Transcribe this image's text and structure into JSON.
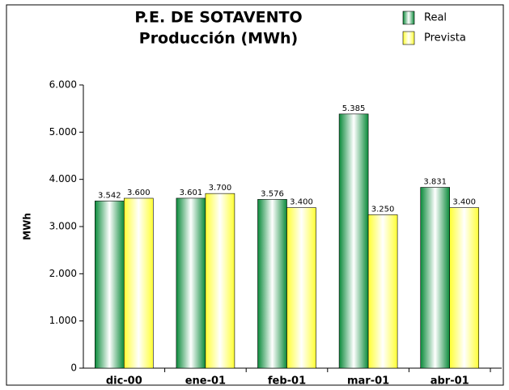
{
  "chart_data": {
    "type": "bar",
    "title": "P.E. DE SOTAVENTO",
    "subtitle": "Producción (MWh)",
    "y_label": "MWh",
    "categories": [
      "dic-00",
      "ene-01",
      "feb-01",
      "mar-01",
      "abr-01"
    ],
    "series": [
      {
        "name": "Real",
        "color": "#0a8a3a",
        "values": [
          3542,
          3601,
          3576,
          5385,
          3831
        ],
        "value_labels": [
          "3.542",
          "3.601",
          "3.576",
          "5.385",
          "3.831"
        ]
      },
      {
        "name": "Prevista",
        "color": "#ffff33",
        "values": [
          3600,
          3700,
          3400,
          3250,
          3400
        ],
        "value_labels": [
          "3.600",
          "3.700",
          "3.400",
          "3.250",
          "3.400"
        ]
      }
    ],
    "ylim": [
      0,
      6000
    ],
    "yticks": [
      0,
      {
        "value": 1000,
        "label": "1.000"
      },
      {
        "value": 2000,
        "label": "2.000"
      },
      {
        "value": 3000,
        "label": "3.000"
      },
      {
        "value": 4000,
        "label": "4.000"
      },
      {
        "value": 5000,
        "label": "5.000"
      },
      {
        "value": 6000,
        "label": "6.000"
      }
    ],
    "legend": "top-right"
  }
}
